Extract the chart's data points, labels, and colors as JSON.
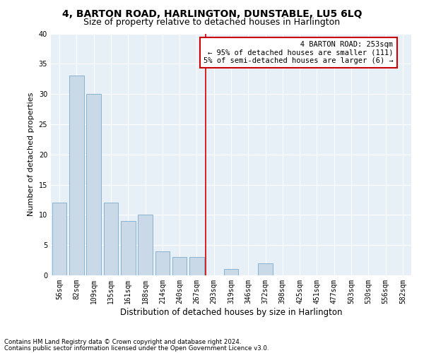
{
  "title": "4, BARTON ROAD, HARLINGTON, DUNSTABLE, LU5 6LQ",
  "subtitle": "Size of property relative to detached houses in Harlington",
  "xlabel": "Distribution of detached houses by size in Harlington",
  "ylabel": "Number of detached properties",
  "categories": [
    "56sqm",
    "82sqm",
    "109sqm",
    "135sqm",
    "161sqm",
    "188sqm",
    "214sqm",
    "240sqm",
    "267sqm",
    "293sqm",
    "319sqm",
    "346sqm",
    "372sqm",
    "398sqm",
    "425sqm",
    "451sqm",
    "477sqm",
    "503sqm",
    "530sqm",
    "556sqm",
    "582sqm"
  ],
  "values": [
    12,
    33,
    30,
    12,
    9,
    10,
    4,
    3,
    3,
    0,
    1,
    0,
    2,
    0,
    0,
    0,
    0,
    0,
    0,
    0,
    0
  ],
  "bar_color": "#c9d9e8",
  "bar_edge_color": "#7aaac8",
  "background_color": "#e8f0f7",
  "grid_color": "#ffffff",
  "vline_position": 8.5,
  "vline_color": "#cc0000",
  "annotation_line1": "   4 BARTON ROAD: 253sqm",
  "annotation_line2": "← 95% of detached houses are smaller (111)",
  "annotation_line3": "5% of semi-detached houses are larger (6) →",
  "annotation_box_color": "#cc0000",
  "footnote1": "Contains HM Land Registry data © Crown copyright and database right 2024.",
  "footnote2": "Contains public sector information licensed under the Open Government Licence v3.0.",
  "ylim": [
    0,
    40
  ],
  "title_fontsize": 10,
  "subtitle_fontsize": 9,
  "xlabel_fontsize": 8.5,
  "ylabel_fontsize": 8,
  "tick_fontsize": 7,
  "annotation_fontsize": 7.5
}
